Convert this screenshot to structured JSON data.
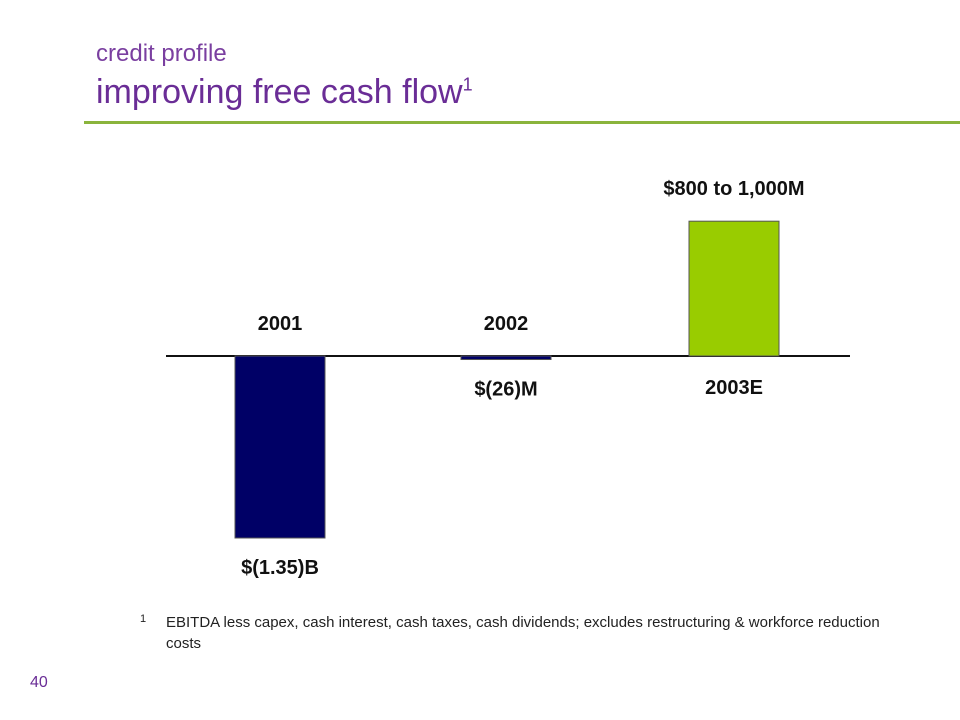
{
  "header": {
    "subtitle": "credit profile",
    "title": "improving free cash flow",
    "title_superscript": "1"
  },
  "colors": {
    "title": "#6a2d96",
    "accent_rule": "#8ab43c",
    "bar_negative": "#000066",
    "bar_positive": "#99cc00"
  },
  "chart_data": {
    "type": "bar",
    "categories": [
      "2001",
      "2002",
      "2003E"
    ],
    "values": [
      -1350,
      -26,
      1000
    ],
    "units": "$M",
    "value_labels": [
      "$(1.35)B",
      "$(26)M",
      "$800 to 1,000M"
    ],
    "colors": [
      "#000066",
      "#000066",
      "#99cc00"
    ],
    "ylim": [
      -1350,
      1000
    ],
    "grid": false,
    "legend": "none"
  },
  "footnote": {
    "marker": "1",
    "text": "EBITDA less capex, cash interest, cash taxes, cash dividends; excludes restructuring & workforce reduction costs"
  },
  "page_number": "40"
}
